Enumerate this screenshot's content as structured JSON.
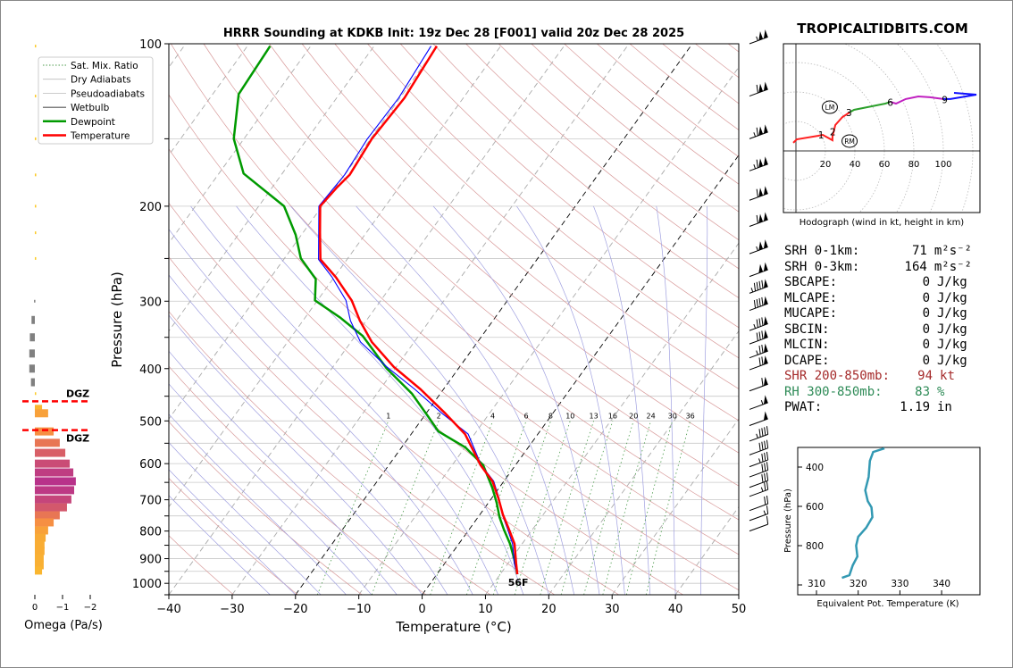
{
  "brand": "TROPICALTIDBITS.COM",
  "chart_data": [
    {
      "type": "line",
      "name": "skew-t",
      "title": "HRRR Sounding at KDKB Init: 19z Dec 28 [F001] valid 20z Dec 28 2025",
      "xlabel": "Temperature (°C)",
      "ylabel": "Pressure (hPa)",
      "xlim": [
        -40,
        50
      ],
      "ylim": [
        1050,
        100
      ],
      "xticks": [
        "−40",
        "−30",
        "−20",
        "−10",
        "0",
        "10",
        "20",
        "30",
        "40",
        "50"
      ],
      "yticks": [
        "100",
        "200",
        "300",
        "400",
        "500",
        "600",
        "700",
        "800",
        "900",
        "1000"
      ],
      "legend": {
        "placement": "top-left",
        "entries": [
          "Sat. Mix. Ratio",
          "Dry Adiabats",
          "Pseudoadiabats",
          "Wetbulb",
          "Dewpoint",
          "Temperature"
        ]
      },
      "mixing_ratio_labels": [
        "1",
        "2",
        "4",
        "6",
        "8",
        "10",
        "13",
        "16",
        "20",
        "24",
        "30",
        "36"
      ],
      "surface_label": "56F",
      "temperature": {
        "p": [
          962,
          919,
          845,
          789,
          745,
          696,
          647,
          604,
          529,
          484,
          437,
          397,
          357,
          326,
          299,
          271,
          251,
          224,
          200,
          185,
          175,
          150,
          126,
          101
        ],
        "t": [
          12.7,
          11.3,
          8.8,
          6.0,
          3.6,
          1.1,
          -1.8,
          -5.5,
          -11.5,
          -17.0,
          -23.6,
          -30.4,
          -36.7,
          -41.0,
          -44.6,
          -49.7,
          -54.2,
          -57.3,
          -60.3,
          -59.8,
          -59.2,
          -59.8,
          -59.3,
          -60.1
        ]
      },
      "dewpoint": {
        "p": [
          962,
          902,
          845,
          795,
          754,
          709,
          665,
          604,
          560,
          523,
          490,
          445,
          400,
          348,
          322,
          299,
          273,
          250,
          226,
          200,
          174,
          150,
          124,
          101
        ],
        "t": [
          12.7,
          10.5,
          8.1,
          5.5,
          3.4,
          1.3,
          -1.1,
          -5.1,
          -9.9,
          -16.0,
          -19.4,
          -24.5,
          -31.3,
          -38.8,
          -44.4,
          -50.4,
          -52.7,
          -57.4,
          -60.9,
          -66.0,
          -76.1,
          -81.6,
          -85.9,
          -86.4
        ]
      },
      "wetbulb": {
        "p": [
          962,
          919,
          845,
          789,
          745,
          696,
          647,
          604,
          529,
          484,
          437,
          397,
          357,
          326,
          299,
          271,
          251,
          224,
          200,
          185,
          175,
          150,
          126,
          101
        ],
        "t": [
          12.7,
          11.0,
          8.5,
          5.8,
          3.5,
          1.2,
          -1.6,
          -5.4,
          -11.0,
          -17.5,
          -24.5,
          -31.5,
          -38.5,
          -42.5,
          -45.5,
          -50.3,
          -54.5,
          -57.5,
          -60.5,
          -60.2,
          -60.0,
          -60.5,
          -60.2,
          -61.0
        ]
      },
      "winds": {
        "p": [
          100,
          125,
          150,
          172,
          195,
          218,
          245,
          270,
          290,
          312,
          340,
          360,
          382,
          402,
          440,
          476,
          510,
          545,
          578,
          608,
          635,
          664,
          690,
          733,
          765,
          800
        ],
        "speed_kt": [
          105,
          110,
          115,
          115,
          110,
          110,
          105,
          100,
          95,
          90,
          85,
          80,
          75,
          70,
          60,
          55,
          50,
          45,
          40,
          35,
          30,
          30,
          25,
          20,
          15,
          10
        ]
      }
    },
    {
      "type": "bar",
      "name": "omega",
      "xlabel": "Omega (Pa/s)",
      "xticks": [
        "0",
        "−1",
        "−2"
      ],
      "xlim": [
        0.3,
        -2.2
      ],
      "dgz_label": "DGZ",
      "dgz_top_hpa": 460,
      "dgz_bottom_hpa": 520,
      "p": [
        101,
        125,
        150,
        175,
        200,
        224,
        250,
        300,
        325,
        350,
        375,
        400,
        424,
        445,
        475,
        484,
        523,
        549,
        573,
        600,
        623,
        647,
        672,
        699,
        723,
        748,
        771,
        798,
        823,
        848,
        871,
        898,
        926,
        947
      ],
      "omega": [
        -0.04,
        -0.04,
        -0.05,
        -0.05,
        -0.05,
        -0.04,
        -0.02,
        0.03,
        0.12,
        0.18,
        0.2,
        0.2,
        0.14,
        -0.04,
        -0.26,
        -0.48,
        -0.68,
        -0.9,
        -1.1,
        -1.26,
        -1.39,
        -1.48,
        -1.42,
        -1.32,
        -1.16,
        -0.9,
        -0.68,
        -0.48,
        -0.39,
        -0.35,
        -0.35,
        -0.32,
        -0.32,
        -0.26
      ]
    },
    {
      "type": "line",
      "name": "hodograph",
      "xlabel": "Hodograph (wind in kt, height in km)",
      "ring_labels": [
        "20",
        "40",
        "60",
        "80",
        "100"
      ],
      "segments": [
        {
          "color": "#ff2020",
          "u": [
            -1.8,
            0.6,
            15.2,
            18.2,
            24.8,
            24.8,
            26.7,
            31.5,
            36.4
          ],
          "v": [
            5.5,
            7.9,
            10.3,
            10.9,
            7.3,
            9.7,
            17.6,
            23.0,
            26.1
          ]
        },
        {
          "color": "#2ca02c",
          "u": [
            36.4,
            39.4,
            48.5,
            60.6,
            64.2
          ],
          "v": [
            26.1,
            27.9,
            29.7,
            32.1,
            33.3
          ]
        },
        {
          "color": "#c020c0",
          "u": [
            64.2,
            67.9,
            74.5,
            83,
            90.9,
            100
          ],
          "v": [
            33.3,
            32.1,
            35.2,
            37,
            36.4,
            35.2
          ]
        },
        {
          "color": "#1010ff",
          "u": [
            100,
            104.8,
            122.4,
            107.3
          ],
          "v": [
            35.2,
            35.2,
            38.2,
            39.4
          ]
        }
      ],
      "height_labels": [
        {
          "text": "1",
          "u": 17,
          "v": 11
        },
        {
          "text": "2",
          "u": 25,
          "v": 13
        },
        {
          "text": "3",
          "u": 36,
          "v": 26
        },
        {
          "text": "6",
          "u": 64,
          "v": 33
        },
        {
          "text": "9",
          "u": 101,
          "v": 35
        }
      ],
      "storm_motion": [
        {
          "text": "LM",
          "u": 23,
          "v": 29.7
        },
        {
          "text": "RM",
          "u": 36.4,
          "v": 6.7
        }
      ]
    },
    {
      "type": "line",
      "name": "theta-e",
      "xlabel": "Equivalent Pot. Temperature (K)",
      "ylabel": "Pressure (hPa)",
      "xticks": [
        "310",
        "320",
        "330",
        "340"
      ],
      "yticks": [
        "400",
        "600",
        "800"
      ],
      "xlim": [
        305.5,
        349
      ],
      "ylim": [
        1050,
        300
      ],
      "p": [
        305,
        323,
        368,
        450,
        518,
        573,
        605,
        655,
        709,
        755,
        800,
        855,
        900,
        950,
        964
      ],
      "theta_e": [
        326.3,
        323.6,
        322.8,
        322.5,
        321.7,
        322.3,
        323.2,
        323.4,
        321.9,
        320,
        319.5,
        319.8,
        318.7,
        317.9,
        316.1
      ],
      "color": "#3399b3"
    }
  ],
  "stats": [
    {
      "label": "SRH 0-1km:",
      "value": "71",
      "unit": "m²s⁻²",
      "color": "#000000"
    },
    {
      "label": "SRH 0-3km:",
      "value": "164",
      "unit": "m²s⁻²",
      "color": "#000000"
    },
    {
      "label": "SBCAPE:",
      "value": "0",
      "unit": "J/kg",
      "color": "#000000"
    },
    {
      "label": "MLCAPE:",
      "value": "0",
      "unit": "J/kg",
      "color": "#000000"
    },
    {
      "label": "MUCAPE:",
      "value": "0",
      "unit": "J/kg",
      "color": "#000000"
    },
    {
      "label": "SBCIN:",
      "value": "0",
      "unit": "J/kg",
      "color": "#000000"
    },
    {
      "label": "MLCIN:",
      "value": "0",
      "unit": "J/kg",
      "color": "#000000"
    },
    {
      "label": "DCAPE:",
      "value": "0",
      "unit": "J/kg",
      "color": "#000000"
    },
    {
      "label": "SHR 200-850mb:",
      "value": "94",
      "unit": "kt",
      "color": "#a52a2a"
    },
    {
      "label": "RH 300-850mb:",
      "value": "83",
      "unit": "%",
      "color": "#2e8b57"
    },
    {
      "label": "PWAT:",
      "value": "1.19",
      "unit": "in",
      "color": "#000000"
    }
  ]
}
